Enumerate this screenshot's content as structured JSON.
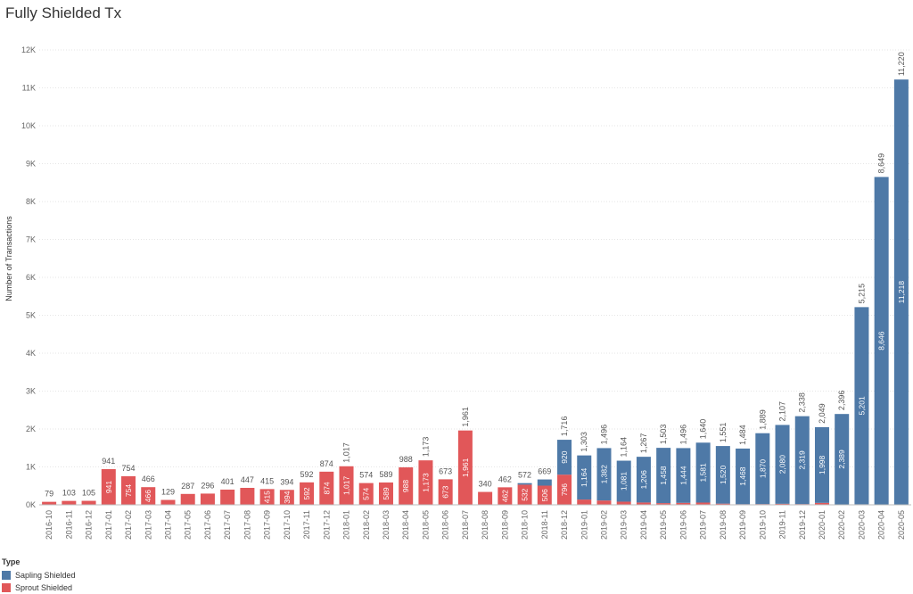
{
  "chart_data": {
    "type": "bar",
    "stacked": true,
    "title": "Fully Shielded Tx",
    "ylabel": "Number of Transactions",
    "ylim": [
      0,
      12000
    ],
    "yticks": [
      0,
      1000,
      2000,
      3000,
      4000,
      5000,
      6000,
      7000,
      8000,
      9000,
      10000,
      11000,
      12000
    ],
    "ytick_labels": [
      "0K",
      "1K",
      "2K",
      "3K",
      "4K",
      "5K",
      "6K",
      "7K",
      "8K",
      "9K",
      "10K",
      "11K",
      "12K"
    ],
    "grid": true,
    "categories": [
      "2016-10",
      "2016-11",
      "2016-12",
      "2017-01",
      "2017-02",
      "2017-03",
      "2017-04",
      "2017-05",
      "2017-06",
      "2017-07",
      "2017-08",
      "2017-09",
      "2017-10",
      "2017-11",
      "2017-12",
      "2018-01",
      "2018-02",
      "2018-03",
      "2018-04",
      "2018-05",
      "2018-06",
      "2018-07",
      "2018-08",
      "2018-09",
      "2018-10",
      "2018-11",
      "2018-12",
      "2019-01",
      "2019-02",
      "2019-03",
      "2019-04",
      "2019-05",
      "2019-06",
      "2019-07",
      "2019-08",
      "2019-09",
      "2019-10",
      "2019-11",
      "2019-12",
      "2020-01",
      "2020-02",
      "2020-03",
      "2020-04",
      "2020-05"
    ],
    "series": [
      {
        "name": "Sprout Shielded",
        "color": "#e15759",
        "values": [
          79,
          103,
          105,
          941,
          754,
          466,
          129,
          287,
          296,
          401,
          447,
          415,
          394,
          592,
          874,
          1017,
          574,
          589,
          988,
          1173,
          673,
          1961,
          340,
          462,
          532,
          506,
          796,
          139,
          114,
          83,
          61,
          45,
          52,
          59,
          31,
          16,
          19,
          27,
          19,
          51,
          7,
          14,
          3,
          2
        ],
        "labels": [
          "",
          "",
          "",
          "941",
          "754",
          "466",
          "",
          "",
          "",
          "",
          "",
          "415",
          "394",
          "592",
          "874",
          "1,017",
          "574",
          "589",
          "988",
          "1,173",
          "673",
          "1,961",
          "",
          "462",
          "532",
          "506",
          "796",
          "",
          "",
          "",
          "",
          "",
          "",
          "",
          "",
          "",
          "",
          "",
          "",
          "",
          "",
          "",
          "",
          ""
        ]
      },
      {
        "name": "Sapling Shielded",
        "color": "#4e79a7",
        "values": [
          0,
          0,
          0,
          0,
          0,
          0,
          0,
          0,
          0,
          0,
          0,
          0,
          0,
          0,
          0,
          0,
          0,
          0,
          0,
          0,
          0,
          0,
          0,
          0,
          40,
          163,
          920,
          1164,
          1382,
          1081,
          1206,
          1458,
          1444,
          1581,
          1520,
          1468,
          1870,
          2080,
          2319,
          1998,
          2389,
          5201,
          8646,
          11218
        ],
        "labels": [
          "",
          "",
          "",
          "",
          "",
          "",
          "",
          "",
          "",
          "",
          "",
          "",
          "",
          "",
          "",
          "",
          "",
          "",
          "",
          "",
          "",
          "",
          "",
          "",
          "",
          "",
          "920",
          "1,164",
          "1,382",
          "1,081",
          "1,206",
          "1,458",
          "1,444",
          "1,581",
          "1,520",
          "1,468",
          "1,870",
          "2,080",
          "2,319",
          "1,998",
          "2,389",
          "5,201",
          "8,646",
          "11,218"
        ]
      }
    ],
    "totals": [
      79,
      103,
      105,
      941,
      754,
      466,
      129,
      287,
      296,
      401,
      447,
      415,
      394,
      592,
      874,
      1017,
      574,
      589,
      988,
      1173,
      673,
      1961,
      340,
      462,
      572,
      669,
      1716,
      1303,
      1496,
      1164,
      1267,
      1503,
      1496,
      1640,
      1551,
      1484,
      1889,
      2107,
      2338,
      2049,
      2396,
      5215,
      8649,
      11220
    ],
    "total_labels": [
      "79",
      "103",
      "105",
      "941",
      "754",
      "466",
      "129",
      "287",
      "296",
      "401",
      "447",
      "415",
      "394",
      "592",
      "874",
      "1,017",
      "574",
      "589",
      "988",
      "1,173",
      "673",
      "1,961",
      "340",
      "462",
      "572",
      "669",
      "1,716",
      "1,303",
      "1,496",
      "1,164",
      "1,267",
      "1,503",
      "1,496",
      "1,640",
      "1,551",
      "1,484",
      "1,889",
      "2,107",
      "2,338",
      "2,049",
      "2,396",
      "5,215",
      "8,649",
      "11,220"
    ],
    "legend": {
      "title": "Type",
      "position": "bottom-left"
    }
  }
}
